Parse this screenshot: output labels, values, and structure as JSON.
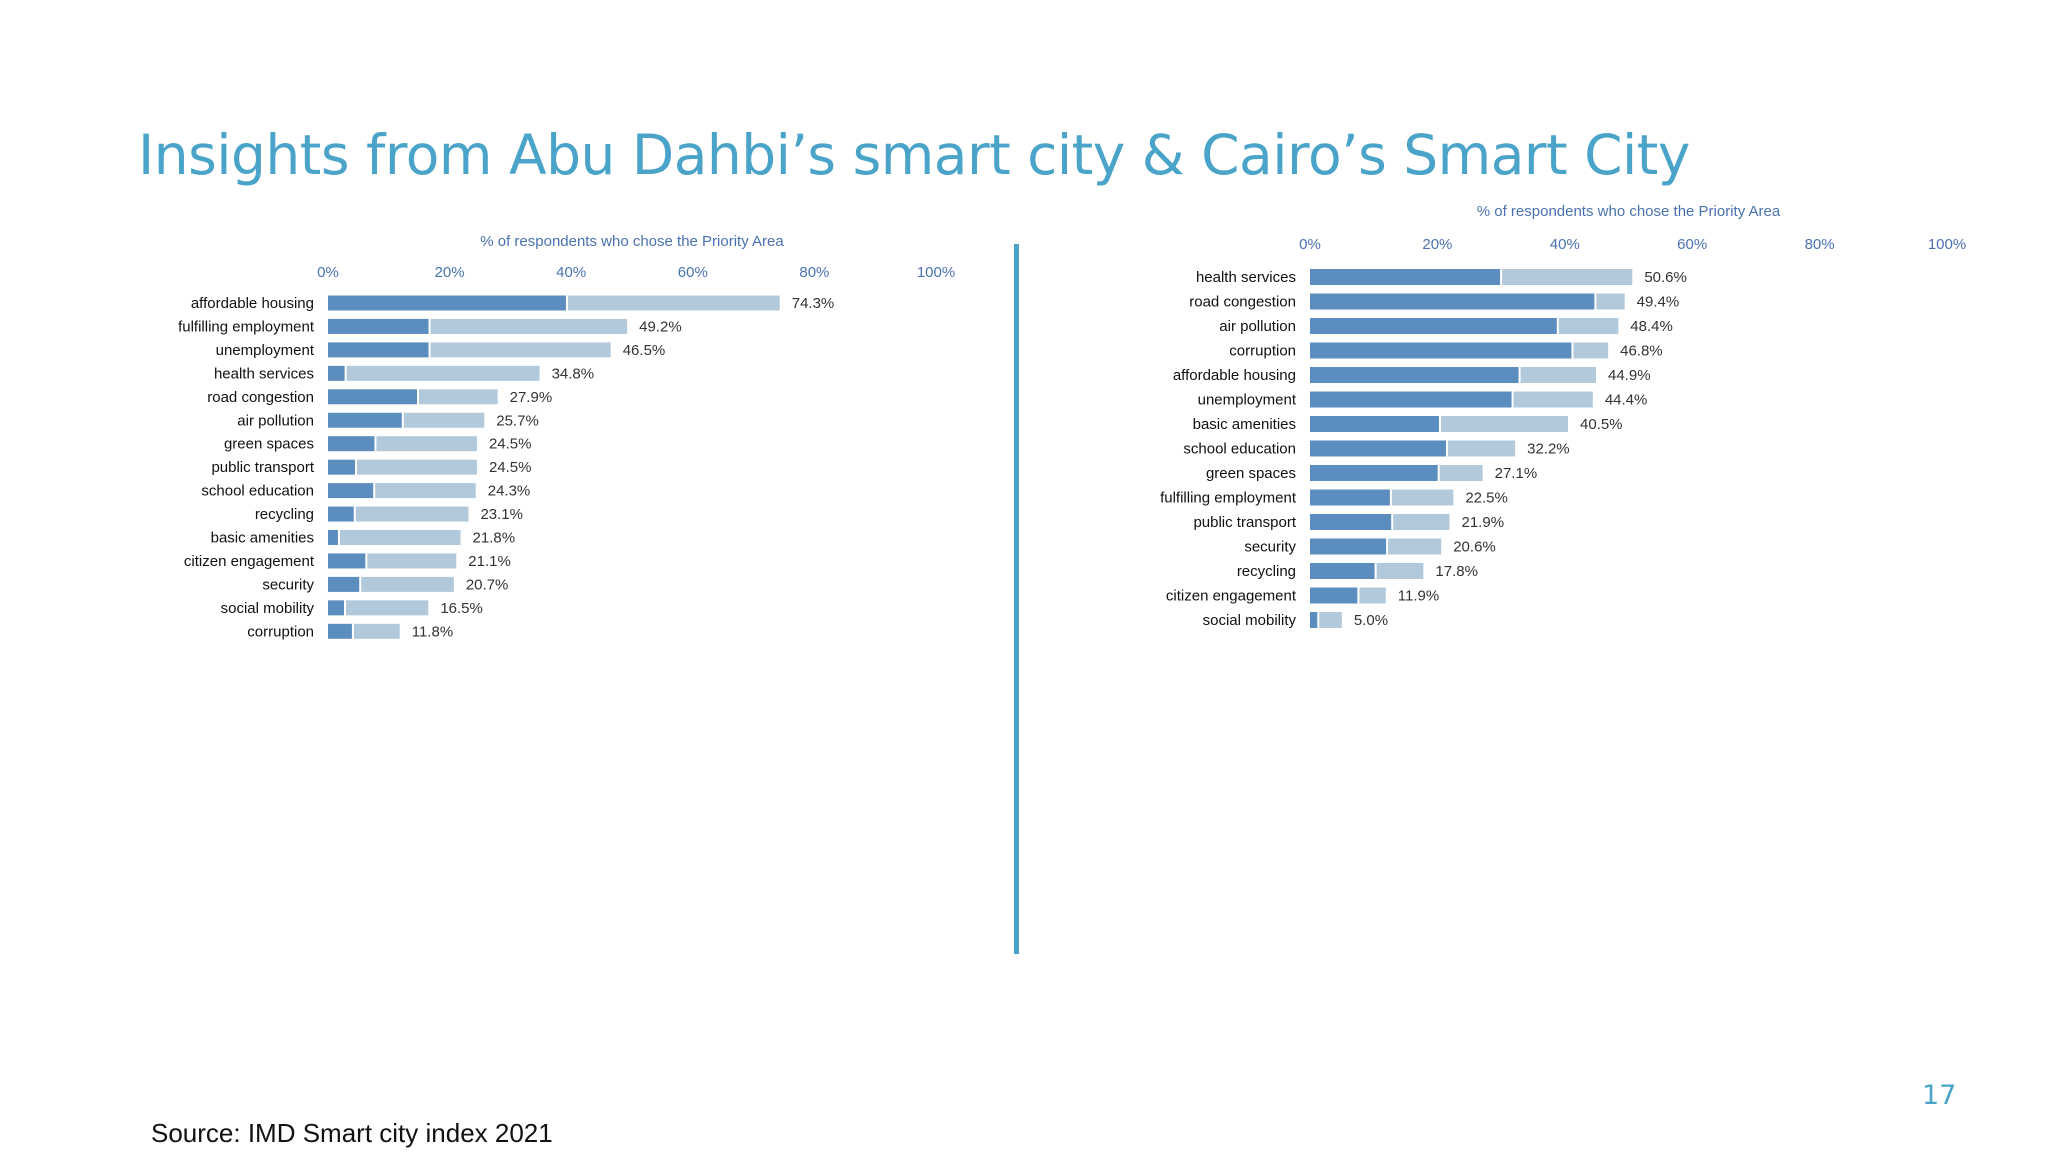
{
  "slide": {
    "title": "Insights from Abu Dahbi’s smart city & Cairo’s Smart City",
    "source": "Source:  IMD Smart city index 2021",
    "page_number": "17"
  },
  "colors": {
    "title": "#4aa3c8",
    "divider": "#4aa3c8",
    "page_number": "#4aa3c8",
    "bar_dark": "#5b8dbf",
    "bar_light": "#b2c9dc",
    "axis_text": "#4a72b0",
    "label_text": "#111111",
    "value_text": "#333333"
  },
  "chart_data": [
    {
      "type": "bar",
      "orientation": "horizontal",
      "stacked": true,
      "title": "% of respondents who chose the Priority Area",
      "xlim": [
        0,
        100
      ],
      "ticks": [
        "0%",
        "20%",
        "40%",
        "60%",
        "80%",
        "100%"
      ],
      "categories": [
        "affordable housing",
        "fulfilling employment",
        "unemployment",
        "health services",
        "road congestion",
        "air pollution",
        "green spaces",
        "public transport",
        "school education",
        "recycling",
        "basic amenities",
        "citizen engagement",
        "security",
        "social mobility",
        "corruption"
      ],
      "totals": [
        74.3,
        49.2,
        46.5,
        34.8,
        27.9,
        25.7,
        24.5,
        24.5,
        24.3,
        23.1,
        21.8,
        21.1,
        20.7,
        16.5,
        11.8
      ],
      "total_labels": [
        "74.3%",
        "49.2%",
        "46.5%",
        "34.8%",
        "27.9%",
        "25.7%",
        "24.5%",
        "24.5%",
        "24.3%",
        "23.1%",
        "21.8%",
        "21.1%",
        "20.7%",
        "16.5%",
        "11.8%"
      ],
      "series": [
        {
          "values": [
            39.3,
            16.7,
            16.7,
            2.9,
            14.8,
            12.3,
            7.8,
            4.6,
            7.6,
            4.4,
            1.8,
            6.3,
            5.3,
            2.8,
            4.1
          ]
        },
        {
          "values": [
            35.0,
            32.5,
            29.8,
            31.9,
            13.1,
            13.4,
            16.7,
            19.9,
            16.7,
            18.7,
            20.0,
            14.8,
            15.4,
            13.7,
            7.7
          ]
        }
      ]
    },
    {
      "type": "bar",
      "orientation": "horizontal",
      "stacked": true,
      "title": "% of respondents who chose the Priority Area",
      "xlim": [
        0,
        100
      ],
      "ticks": [
        "0%",
        "20%",
        "40%",
        "60%",
        "80%",
        "100%"
      ],
      "categories": [
        "health services",
        "road congestion",
        "air pollution",
        "corruption",
        "affordable housing",
        "unemployment",
        "basic amenities",
        "school education",
        "green spaces",
        "fulfilling employment",
        "public transport",
        "security",
        "recycling",
        "citizen engagement",
        "social mobility"
      ],
      "totals": [
        50.6,
        49.4,
        48.4,
        46.8,
        44.9,
        44.4,
        40.5,
        32.2,
        27.1,
        22.5,
        21.9,
        20.6,
        17.8,
        11.9,
        5.0
      ],
      "total_labels": [
        "50.6%",
        "49.4%",
        "48.4%",
        "46.8%",
        "44.9%",
        "44.4%",
        "40.5%",
        "32.2%",
        "27.1%",
        "22.5%",
        "21.9%",
        "20.6%",
        "17.8%",
        "11.9%",
        "5.0%"
      ],
      "series": [
        {
          "values": [
            30.0,
            44.8,
            38.9,
            41.2,
            32.9,
            31.8,
            20.4,
            21.5,
            20.2,
            12.7,
            12.9,
            12.1,
            10.3,
            7.6,
            1.3
          ]
        },
        {
          "values": [
            20.6,
            4.6,
            9.5,
            5.6,
            12.0,
            12.6,
            20.1,
            10.7,
            6.9,
            9.8,
            9.0,
            8.5,
            7.5,
            4.3,
            3.7
          ]
        }
      ]
    }
  ]
}
